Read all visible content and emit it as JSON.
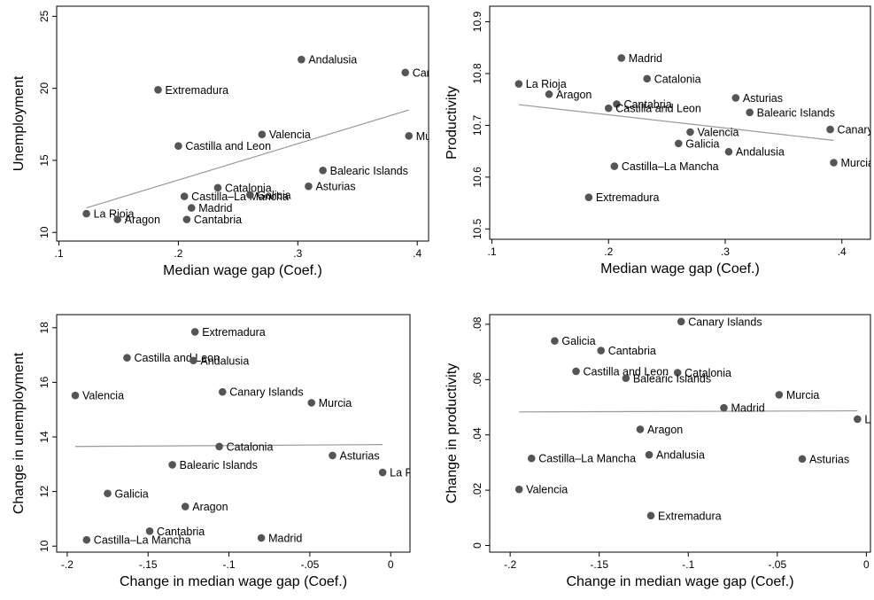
{
  "chart_data": [
    {
      "type": "scatter",
      "xlabel": "Median wage gap (Coef.)",
      "ylabel": "Unemployment",
      "xlim": [
        0.1,
        0.4
      ],
      "ylim": [
        10,
        25
      ],
      "xticks": [
        0.1,
        0.2,
        0.3,
        0.4
      ],
      "xtick_labels": [
        ".1",
        ".2",
        ".3",
        ".4"
      ],
      "yticks": [
        10,
        15,
        20,
        25
      ],
      "ytick_labels": [
        "10",
        "15",
        "20",
        "25"
      ],
      "fit_line": {
        "x": [
          0.123,
          0.393
        ],
        "y": [
          11.7,
          18.5
        ]
      },
      "points": [
        {
          "label": "Andalusia",
          "x": 0.303,
          "y": 22.0
        },
        {
          "label": "Canary Islands",
          "x": 0.39,
          "y": 21.1
        },
        {
          "label": "Extremadura",
          "x": 0.183,
          "y": 19.9
        },
        {
          "label": "Murcia",
          "x": 0.393,
          "y": 16.7
        },
        {
          "label": "Valencia",
          "x": 0.27,
          "y": 16.8
        },
        {
          "label": "Castilla and Leon",
          "x": 0.2,
          "y": 16.0
        },
        {
          "label": "Balearic Islands",
          "x": 0.321,
          "y": 14.3
        },
        {
          "label": "Asturias",
          "x": 0.309,
          "y": 13.2
        },
        {
          "label": "Catalonia",
          "x": 0.233,
          "y": 13.1
        },
        {
          "label": "Castilla–La Mancha",
          "x": 0.205,
          "y": 12.5
        },
        {
          "label": "Galicia",
          "x": 0.26,
          "y": 12.6
        },
        {
          "label": "Madrid",
          "x": 0.211,
          "y": 11.7
        },
        {
          "label": "La Rioja",
          "x": 0.123,
          "y": 11.3
        },
        {
          "label": "Aragon",
          "x": 0.149,
          "y": 10.9
        },
        {
          "label": "Cantabria",
          "x": 0.207,
          "y": 10.9
        }
      ]
    },
    {
      "type": "scatter",
      "xlabel": "Median wage gap (Coef.)",
      "ylabel": "Productivity",
      "xlim": [
        0.1,
        0.4
      ],
      "ylim": [
        10.5,
        10.9
      ],
      "xticks": [
        0.1,
        0.2,
        0.3,
        0.4
      ],
      "xtick_labels": [
        ".1",
        ".2",
        ".3",
        ".4"
      ],
      "yticks": [
        10.5,
        10.6,
        10.7,
        10.8,
        10.9
      ],
      "ytick_labels": [
        "10.5",
        "10.6",
        "10.7",
        "10.8",
        "10.9"
      ],
      "fit_line": {
        "x": [
          0.123,
          0.393
        ],
        "y": [
          10.74,
          10.671
        ]
      },
      "points": [
        {
          "label": "Madrid",
          "x": 0.211,
          "y": 10.83
        },
        {
          "label": "Catalonia",
          "x": 0.233,
          "y": 10.79
        },
        {
          "label": "La Rioja",
          "x": 0.123,
          "y": 10.78
        },
        {
          "label": "Aragon",
          "x": 0.149,
          "y": 10.76
        },
        {
          "label": "Asturias",
          "x": 0.309,
          "y": 10.753
        },
        {
          "label": "Cantabria",
          "x": 0.207,
          "y": 10.741
        },
        {
          "label": "Castilla and Leon",
          "x": 0.2,
          "y": 10.733
        },
        {
          "label": "Balearic Islands",
          "x": 0.321,
          "y": 10.725
        },
        {
          "label": "Canary Islands",
          "x": 0.39,
          "y": 10.692
        },
        {
          "label": "Valencia",
          "x": 0.27,
          "y": 10.687
        },
        {
          "label": "Galicia",
          "x": 0.26,
          "y": 10.665
        },
        {
          "label": "Andalusia",
          "x": 0.303,
          "y": 10.649
        },
        {
          "label": "Murcia",
          "x": 0.393,
          "y": 10.628
        },
        {
          "label": "Castilla–La Mancha",
          "x": 0.205,
          "y": 10.621
        },
        {
          "label": "Extremadura",
          "x": 0.183,
          "y": 10.561
        }
      ]
    },
    {
      "type": "scatter",
      "xlabel": "Change in median wage gap (Coef.)",
      "ylabel": "Change in unemployment",
      "xlim": [
        -0.2,
        0
      ],
      "ylim": [
        10,
        18
      ],
      "xticks": [
        -0.2,
        -0.15,
        -0.1,
        -0.05,
        0
      ],
      "xtick_labels": [
        "-.2",
        "-.15",
        "-.1",
        "-.05",
        "0"
      ],
      "yticks": [
        10,
        12,
        14,
        16,
        18
      ],
      "ytick_labels": [
        "10",
        "12",
        "14",
        "16",
        "18"
      ],
      "fit_line": {
        "x": [
          -0.195,
          -0.005
        ],
        "y": [
          13.65,
          13.72
        ]
      },
      "points": [
        {
          "label": "Extremadura",
          "x": -0.121,
          "y": 17.85
        },
        {
          "label": "Castilla and Leon",
          "x": -0.163,
          "y": 16.9
        },
        {
          "label": "Andalusia",
          "x": -0.122,
          "y": 16.8
        },
        {
          "label": "Canary Islands",
          "x": -0.104,
          "y": 15.65
        },
        {
          "label": "Valencia",
          "x": -0.195,
          "y": 15.52
        },
        {
          "label": "Murcia",
          "x": -0.049,
          "y": 15.25
        },
        {
          "label": "Catalonia",
          "x": -0.106,
          "y": 13.65
        },
        {
          "label": "Asturias",
          "x": -0.036,
          "y": 13.32
        },
        {
          "label": "Balearic Islands",
          "x": -0.135,
          "y": 12.98
        },
        {
          "label": "La Rioja",
          "x": -0.005,
          "y": 12.7
        },
        {
          "label": "Galicia",
          "x": -0.175,
          "y": 11.93
        },
        {
          "label": "Aragon",
          "x": -0.127,
          "y": 11.45
        },
        {
          "label": "Cantabria",
          "x": -0.149,
          "y": 10.55
        },
        {
          "label": "Madrid",
          "x": -0.08,
          "y": 10.3
        },
        {
          "label": "Castilla–La Mancha",
          "x": -0.188,
          "y": 10.23
        }
      ]
    },
    {
      "type": "scatter",
      "xlabel": "Change in median wage gap (Coef.)",
      "ylabel": "Change in productivity",
      "xlim": [
        -0.2,
        0
      ],
      "ylim": [
        0,
        0.08
      ],
      "xticks": [
        -0.2,
        -0.15,
        -0.1,
        -0.05,
        0
      ],
      "xtick_labels": [
        "-.2",
        "-.15",
        "-.1",
        "-.05",
        "0"
      ],
      "yticks": [
        0,
        0.02,
        0.04,
        0.06,
        0.08
      ],
      "ytick_labels": [
        "0",
        ".02",
        ".04",
        ".06",
        ".08"
      ],
      "fit_line": {
        "x": [
          -0.195,
          -0.005
        ],
        "y": [
          0.0483,
          0.0487
        ]
      },
      "points": [
        {
          "label": "Canary Islands",
          "x": -0.104,
          "y": 0.081
        },
        {
          "label": "Galicia",
          "x": -0.175,
          "y": 0.074
        },
        {
          "label": "Cantabria",
          "x": -0.149,
          "y": 0.0705
        },
        {
          "label": "Castilla and Leon",
          "x": -0.163,
          "y": 0.063
        },
        {
          "label": "Catalonia",
          "x": -0.106,
          "y": 0.0625
        },
        {
          "label": "Balearic Islands",
          "x": -0.135,
          "y": 0.0605
        },
        {
          "label": "Murcia",
          "x": -0.049,
          "y": 0.0545
        },
        {
          "label": "Madrid",
          "x": -0.08,
          "y": 0.0498
        },
        {
          "label": "La Rioja",
          "x": -0.005,
          "y": 0.0457
        },
        {
          "label": "Aragon",
          "x": -0.127,
          "y": 0.042
        },
        {
          "label": "Andalusia",
          "x": -0.122,
          "y": 0.0328
        },
        {
          "label": "Castilla–La Mancha",
          "x": -0.188,
          "y": 0.0315
        },
        {
          "label": "Asturias",
          "x": -0.036,
          "y": 0.0313
        },
        {
          "label": "Valencia",
          "x": -0.195,
          "y": 0.0203
        },
        {
          "label": "Extremadura",
          "x": -0.121,
          "y": 0.0108
        }
      ]
    }
  ]
}
